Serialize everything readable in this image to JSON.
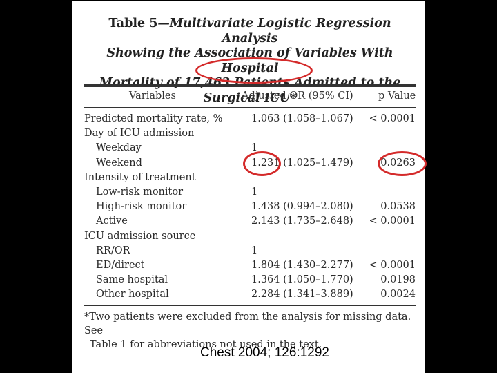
{
  "table": {
    "title_label": "Table 5",
    "title_dash": "—",
    "title_line1": "Multivariate Logistic Regression Analysis",
    "title_line2": "Showing the Association of Variables With Hospital",
    "title_line3": "Mortality of 17,463 Patients Admitted to the",
    "title_line4": "Surgical ICU*",
    "columns": [
      "Variables",
      "Adjusted OR (95% CI)",
      "p Value"
    ],
    "rows": [
      {
        "variable": "Predicted mortality rate, %",
        "or": "1.063 (1.058–1.067)",
        "p": "< 0.0001"
      },
      {
        "variable": "Day of ICU admission",
        "or": "",
        "p": ""
      },
      {
        "variable": "Weekday",
        "or": "1",
        "p": ""
      },
      {
        "variable": "Weekend",
        "or": "1.231 (1.025–1.479)",
        "p": "0.0263"
      },
      {
        "variable": "Intensity of treatment",
        "or": "",
        "p": ""
      },
      {
        "variable": "Low-risk monitor",
        "or": "1",
        "p": ""
      },
      {
        "variable": "High-risk monitor",
        "or": "1.438 (0.994–2.080)",
        "p": "0.0538"
      },
      {
        "variable": "Active",
        "or": "2.143 (1.735–2.648)",
        "p": "< 0.0001"
      },
      {
        "variable": "ICU admission source",
        "or": "",
        "p": ""
      },
      {
        "variable": "RR/OR",
        "or": "1",
        "p": ""
      },
      {
        "variable": "ED/direct",
        "or": "1.804 (1.430–2.277)",
        "p": "< 0.0001"
      },
      {
        "variable": "Same hospital",
        "or": "1.364 (1.050–1.770)",
        "p": "0.0198"
      },
      {
        "variable": "Other hospital",
        "or": "2.284 (1.341–3.889)",
        "p": "0.0024"
      }
    ],
    "footnote_line1": "*Two patients were excluded from the analysis for missing data. See",
    "footnote_line2": "Table 1 for abbreviations not used in the text."
  },
  "citation": "Chest 2004; 126:1292",
  "annotation_color": "#d42a2a"
}
